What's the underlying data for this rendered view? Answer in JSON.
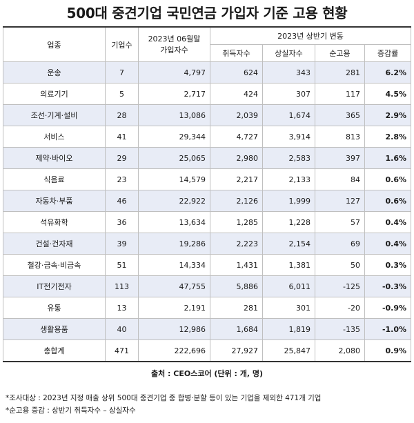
{
  "title": "500대 중견기업 국민연금 가입자 기준 고용 현황",
  "headers": {
    "industry": "업종",
    "companies": "기업수",
    "members_line1": "2023년 06월말",
    "members_line2": "가입자수",
    "change_group": "2023년 상반기 변동",
    "acquired": "취득자수",
    "lost": "상실자수",
    "net": "순고용",
    "rate": "증감률"
  },
  "rows": [
    {
      "industry": "운송",
      "companies": "7",
      "members": "4,797",
      "acquired": "624",
      "lost": "343",
      "net": "281",
      "rate": "6.2%"
    },
    {
      "industry": "의료기기",
      "companies": "5",
      "members": "2,717",
      "acquired": "424",
      "lost": "307",
      "net": "117",
      "rate": "4.5%"
    },
    {
      "industry": "조선·기계·설비",
      "companies": "28",
      "members": "13,086",
      "acquired": "2,039",
      "lost": "1,674",
      "net": "365",
      "rate": "2.9%"
    },
    {
      "industry": "서비스",
      "companies": "41",
      "members": "29,344",
      "acquired": "4,727",
      "lost": "3,914",
      "net": "813",
      "rate": "2.8%"
    },
    {
      "industry": "제약·바이오",
      "companies": "29",
      "members": "25,065",
      "acquired": "2,980",
      "lost": "2,583",
      "net": "397",
      "rate": "1.6%"
    },
    {
      "industry": "식음료",
      "companies": "23",
      "members": "14,579",
      "acquired": "2,217",
      "lost": "2,133",
      "net": "84",
      "rate": "0.6%"
    },
    {
      "industry": "자동차·부품",
      "companies": "46",
      "members": "22,922",
      "acquired": "2,126",
      "lost": "1,999",
      "net": "127",
      "rate": "0.6%"
    },
    {
      "industry": "석유화학",
      "companies": "36",
      "members": "13,634",
      "acquired": "1,285",
      "lost": "1,228",
      "net": "57",
      "rate": "0.4%"
    },
    {
      "industry": "건설·건자재",
      "companies": "39",
      "members": "19,286",
      "acquired": "2,223",
      "lost": "2,154",
      "net": "69",
      "rate": "0.4%"
    },
    {
      "industry": "철강·금속·비금속",
      "companies": "51",
      "members": "14,334",
      "acquired": "1,431",
      "lost": "1,381",
      "net": "50",
      "rate": "0.3%"
    },
    {
      "industry": "IT전기전자",
      "companies": "113",
      "members": "47,755",
      "acquired": "5,886",
      "lost": "6,011",
      "net": "-125",
      "rate": "-0.3%"
    },
    {
      "industry": "유통",
      "companies": "13",
      "members": "2,191",
      "acquired": "281",
      "lost": "301",
      "net": "-20",
      "rate": "-0.9%"
    },
    {
      "industry": "생활용품",
      "companies": "40",
      "members": "12,986",
      "acquired": "1,684",
      "lost": "1,819",
      "net": "-135",
      "rate": "-1.0%"
    }
  ],
  "total": {
    "industry": "총합계",
    "companies": "471",
    "members": "222,696",
    "acquired": "27,927",
    "lost": "25,847",
    "net": "2,080",
    "rate": "0.9%"
  },
  "source": "출처 : CEO스코어 (단위 : 개, 명)",
  "notes": [
    "*조사대상 : 2023년 지정 매출 상위 500대 중견기업 중 합병·분할 등이 있는 기업을 제외한 471개 기업",
    "*순고용 증감 : 상반기 취득자수 – 상실자수"
  ],
  "colors": {
    "shaded_row": "#e8ecf6",
    "border": "#bfbfbf",
    "rule": "#333333"
  }
}
